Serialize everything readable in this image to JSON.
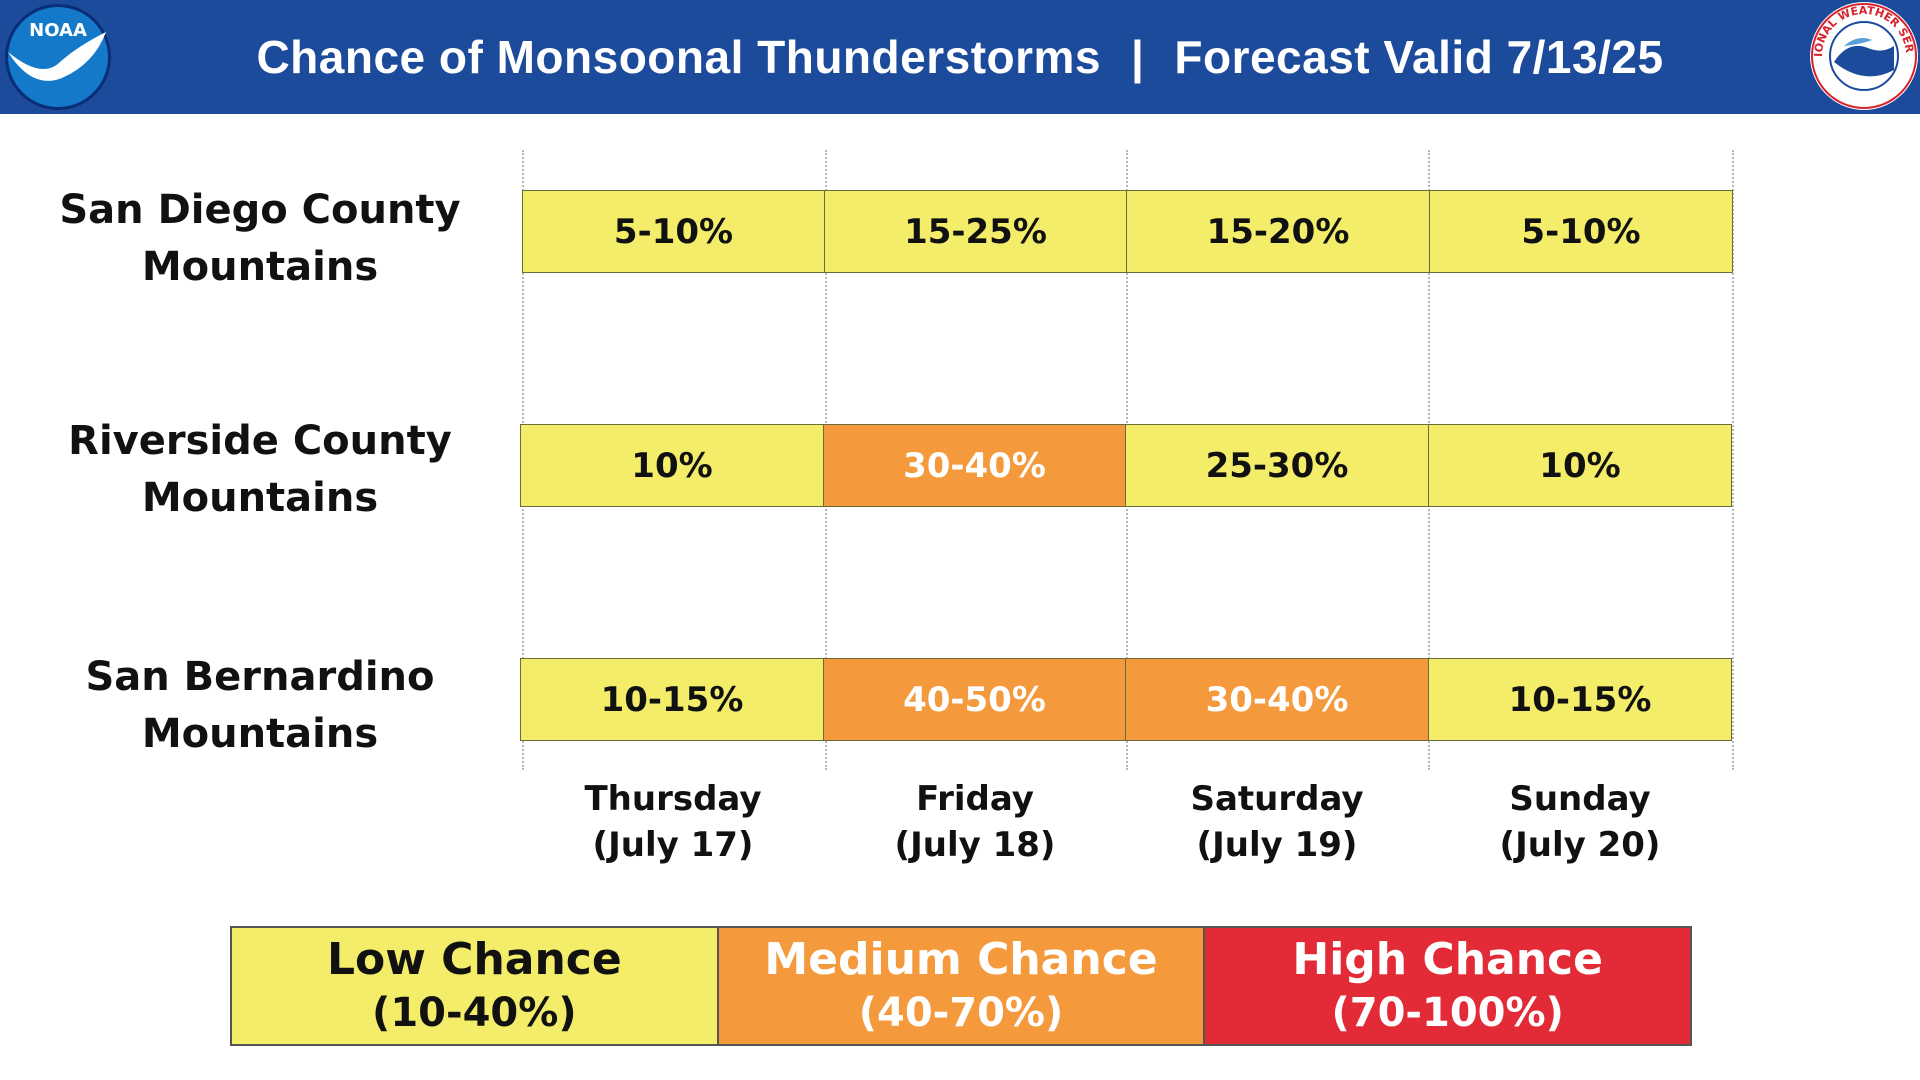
{
  "header": {
    "title": "Chance of Monsoonal Thunderstorms",
    "separator": "|",
    "valid": "Forecast Valid 7/13/25",
    "logo_left": "NOAA",
    "logo_right": "NATIONAL WEATHER SERVICE"
  },
  "colors": {
    "header_bg": "#1d4b9b",
    "low": "#f3ed69",
    "medium": "#f49a3d",
    "high": "#e32b37"
  },
  "chart_data": {
    "type": "table",
    "title": "Chance of Monsoonal Thunderstorms | Forecast Valid 7/13/25",
    "columns": [
      {
        "day": "Thursday",
        "date": "(July 17)"
      },
      {
        "day": "Friday",
        "date": "(July 18)"
      },
      {
        "day": "Saturday",
        "date": "(July 19)"
      },
      {
        "day": "Sunday",
        "date": "(July 20)"
      }
    ],
    "rows": [
      {
        "label_line1": "San Diego County",
        "label_line2": "Mountains",
        "cells": [
          {
            "text": "5-10%",
            "level": "low"
          },
          {
            "text": "15-25%",
            "level": "low"
          },
          {
            "text": "15-20%",
            "level": "low"
          },
          {
            "text": "5-10%",
            "level": "low"
          }
        ]
      },
      {
        "label_line1": "Riverside County",
        "label_line2": "Mountains",
        "cells": [
          {
            "text": "10%",
            "level": "low"
          },
          {
            "text": "30-40%",
            "level": "medium"
          },
          {
            "text": "25-30%",
            "level": "low"
          },
          {
            "text": "10%",
            "level": "low"
          }
        ]
      },
      {
        "label_line1": "San Bernardino",
        "label_line2": "Mountains",
        "cells": [
          {
            "text": "10-15%",
            "level": "low"
          },
          {
            "text": "40-50%",
            "level": "medium"
          },
          {
            "text": "30-40%",
            "level": "medium"
          },
          {
            "text": "10-15%",
            "level": "low"
          }
        ]
      }
    ],
    "legend": [
      {
        "name": "Low Chance",
        "range": "(10-40%)",
        "level": "low"
      },
      {
        "name": "Medium Chance",
        "range": "(40-70%)",
        "level": "medium"
      },
      {
        "name": "High Chance",
        "range": "(70-100%)",
        "level": "high"
      }
    ]
  }
}
